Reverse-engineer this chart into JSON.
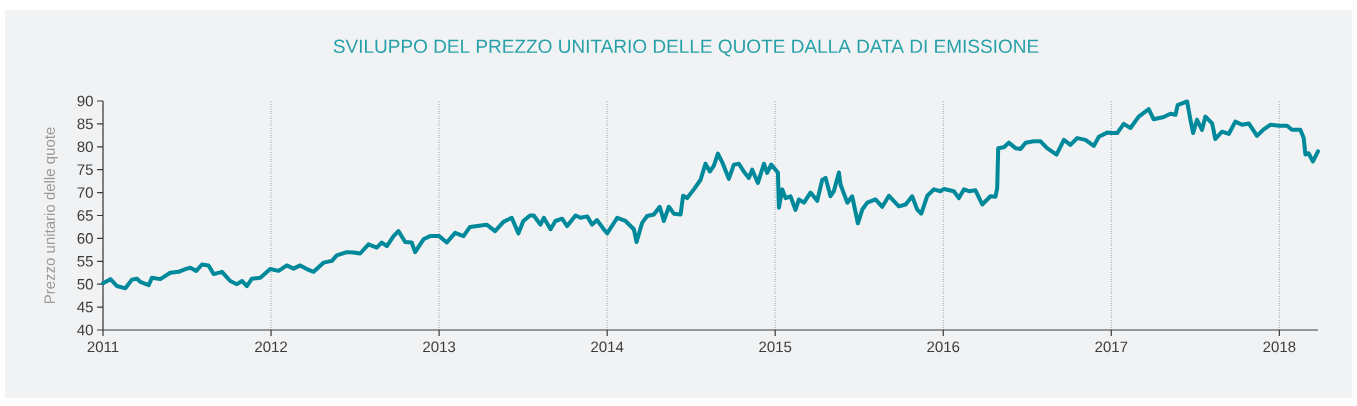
{
  "chart_data": {
    "type": "line",
    "title": "SVILUPPO DEL PREZZO UNITARIO DELLE QUOTE DALLA DATA DI EMISSIONE",
    "ylabel": "Prezzo unitario delle quote",
    "x": [
      2011.0,
      2011.044,
      2011.083,
      2011.133,
      2011.172,
      2011.202,
      2011.222,
      2011.272,
      2011.291,
      2011.341,
      2011.4,
      2011.45,
      2011.49,
      2011.52,
      2011.555,
      2011.589,
      2011.628,
      2011.658,
      2011.708,
      2011.757,
      2011.797,
      2011.827,
      2011.856,
      2011.886,
      2011.936,
      2011.995,
      2012.045,
      2012.094,
      2012.134,
      2012.173,
      2012.213,
      2012.253,
      2012.312,
      2012.362,
      2012.391,
      2012.451,
      2012.491,
      2012.53,
      2012.58,
      2012.629,
      2012.659,
      2012.689,
      2012.729,
      2012.758,
      2012.798,
      2012.837,
      2012.857,
      2012.907,
      2012.946,
      2013.0,
      2013.046,
      2013.095,
      2013.145,
      2013.184,
      2013.283,
      2013.333,
      2013.383,
      2013.432,
      2013.472,
      2013.501,
      2013.541,
      2013.563,
      2013.603,
      2013.623,
      2013.663,
      2013.692,
      2013.732,
      2013.762,
      2013.812,
      2013.841,
      2013.881,
      2013.911,
      2013.94,
      2013.98,
      2014.0,
      2014.06,
      2014.109,
      2014.159,
      2014.175,
      2014.208,
      2014.238,
      2014.278,
      2014.313,
      2014.337,
      2014.367,
      2014.397,
      2014.437,
      2014.452,
      2014.476,
      2014.516,
      2014.556,
      2014.585,
      2014.611,
      2014.635,
      2014.659,
      2014.685,
      2014.724,
      2014.754,
      2014.784,
      2014.813,
      2014.843,
      2014.863,
      2014.897,
      2014.933,
      2014.952,
      2014.976,
      2015.016,
      2015.022,
      2015.042,
      2015.062,
      2015.091,
      2015.121,
      2015.141,
      2015.171,
      2015.21,
      2015.25,
      2015.28,
      2015.3,
      2015.329,
      2015.349,
      2015.379,
      2015.389,
      2015.429,
      2015.458,
      2015.492,
      2015.518,
      2015.548,
      2015.597,
      2015.637,
      2015.677,
      2015.736,
      2015.776,
      2015.815,
      2015.845,
      2015.869,
      2015.905,
      2015.944,
      2015.984,
      2016.004,
      2016.063,
      2016.093,
      2016.123,
      2016.153,
      2016.192,
      2016.232,
      2016.281,
      2016.311,
      2016.321,
      2016.327,
      2016.361,
      2016.39,
      2016.43,
      2016.46,
      2016.49,
      2016.539,
      2016.579,
      2016.618,
      2016.674,
      2016.718,
      2016.757,
      2016.797,
      2016.846,
      2016.896,
      2016.926,
      2016.975,
      2017.0,
      2017.035,
      2017.074,
      2017.114,
      2017.163,
      2017.223,
      2017.252,
      2017.312,
      2017.352,
      2017.382,
      2017.395,
      2017.451,
      2017.471,
      2017.487,
      2017.51,
      2017.54,
      2017.56,
      2017.6,
      2017.619,
      2017.659,
      2017.699,
      2017.738,
      2017.778,
      2017.818,
      2017.867,
      2017.907,
      2017.946,
      2018.0,
      2018.046,
      2018.075,
      2018.125,
      2018.145,
      2018.155,
      2018.174,
      2018.2,
      2018.23
    ],
    "values": [
      50.2,
      51.1,
      49.6,
      49.1,
      51,
      51.2,
      50.5,
      49.8,
      51.4,
      51.1,
      52.5,
      52.7,
      53.3,
      53.6,
      52.9,
      54.3,
      54.1,
      52.2,
      52.7,
      50.7,
      50,
      50.7,
      49.6,
      51.2,
      51.4,
      53.3,
      52.9,
      54.1,
      53.4,
      54.1,
      53.3,
      52.7,
      54.7,
      55.1,
      56.3,
      57,
      56.9,
      56.7,
      58.7,
      58,
      59.1,
      58.3,
      60.5,
      61.6,
      59.2,
      59.1,
      57,
      59.8,
      60.5,
      60.5,
      59.1,
      61.2,
      60.5,
      62.5,
      63,
      61.6,
      63.6,
      64.5,
      61.1,
      63.8,
      65,
      65,
      63,
      64.5,
      62,
      63.8,
      64.3,
      62.7,
      65,
      64.5,
      64.8,
      63,
      64,
      62,
      61.1,
      64.5,
      63.8,
      62,
      59.2,
      63.4,
      64.9,
      65.2,
      66.9,
      63.8,
      66.9,
      65.4,
      65.2,
      69.3,
      68.8,
      70.7,
      72.8,
      76.3,
      74.6,
      75.9,
      78.5,
      76.6,
      73,
      76.1,
      76.3,
      74.6,
      73.2,
      75,
      72.1,
      76.3,
      74.3,
      76.1,
      74.4,
      66.7,
      70.7,
      68.8,
      69.2,
      66.2,
      68.5,
      67.8,
      70,
      68.2,
      72.8,
      73.2,
      69.2,
      70.3,
      74.4,
      71.7,
      67.8,
      69.2,
      63.3,
      66.3,
      67.8,
      68.5,
      66.9,
      69.3,
      67,
      67.4,
      69.2,
      66.3,
      65.4,
      69.3,
      70.7,
      70.3,
      70.8,
      70.3,
      68.8,
      70.7,
      70.3,
      70.5,
      67.4,
      69.2,
      69.1,
      71,
      79.7,
      79.9,
      80.9,
      79.7,
      79.5,
      80.9,
      81.2,
      81.2,
      79.7,
      78.3,
      81.5,
      80.4,
      81.9,
      81.5,
      80.2,
      82.2,
      83.1,
      83,
      83,
      85,
      84.1,
      86.6,
      88.2,
      86,
      86.5,
      87.2,
      87,
      89.1,
      89.9,
      85.9,
      83,
      85.9,
      83.7,
      86.6,
      85.1,
      81.7,
      83.3,
      82.8,
      85.5,
      84.8,
      85.1,
      82.4,
      83.8,
      84.8,
      84.6,
      84.6,
      83.7,
      83.7,
      81.9,
      78.3,
      78.6,
      76.8,
      79
    ],
    "color": "#00899a",
    "xlim": [
      2011,
      2018.23
    ],
    "ylim": [
      40,
      90
    ],
    "xticks": [
      2011,
      2012,
      2013,
      2014,
      2015,
      2016,
      2017,
      2018
    ],
    "yticks": [
      40,
      45,
      50,
      55,
      60,
      65,
      70,
      75,
      80,
      85,
      90
    ],
    "grid": "x"
  }
}
